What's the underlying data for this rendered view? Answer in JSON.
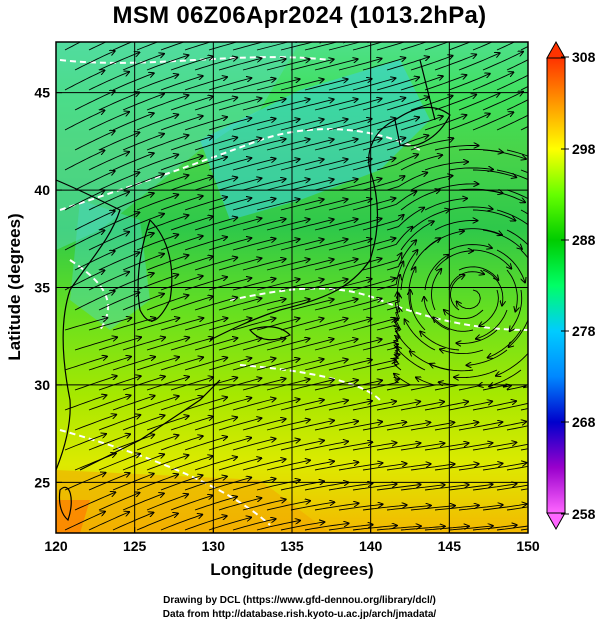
{
  "title": "MSM 06Z06Apr2024 (1013.2hPa)",
  "x_axis": {
    "label": "Longitude (degrees)",
    "ticks": [
      120,
      125,
      130,
      135,
      140,
      145,
      150
    ],
    "range": [
      120,
      150
    ]
  },
  "y_axis": {
    "label": "Latitude  (degrees)",
    "ticks": [
      25,
      30,
      35,
      40,
      45
    ],
    "range": [
      22.4,
      47.6
    ]
  },
  "colorbar": {
    "ticks": [
      308,
      298,
      288,
      278,
      268,
      258
    ],
    "range": [
      258,
      308
    ],
    "stops": [
      "#ff66ff",
      "#9900cc",
      "#0000cc",
      "#0099ff",
      "#00ccff",
      "#00ff66",
      "#00cc00",
      "#66ff00",
      "#ffff00",
      "#ff9900",
      "#ff3300"
    ]
  },
  "credits": {
    "line1": "Drawing by DCL (https://www.gfd-dennou.org/library/dcl/)",
    "line2": "Data from http://database.rish.kyoto-u.ac.jp/arch/jmadata/"
  }
}
